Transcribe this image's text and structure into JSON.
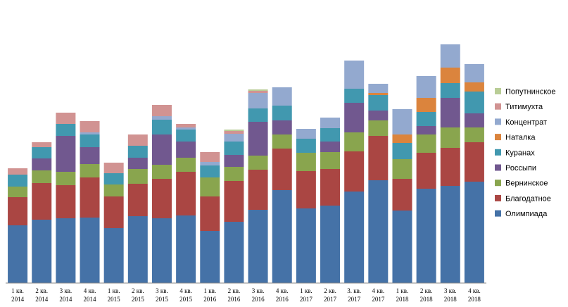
{
  "chart_data": {
    "type": "bar",
    "stacked": true,
    "categories": [
      [
        "1 кв.",
        "2014"
      ],
      [
        "2 кв.",
        "2014"
      ],
      [
        "3 кв.",
        "2014"
      ],
      [
        "4 кв.",
        "2014"
      ],
      [
        "1 кв.",
        "2015"
      ],
      [
        "2 кв.",
        "2015"
      ],
      [
        "3 кв.",
        "2015"
      ],
      [
        "4 кв.",
        "2015"
      ],
      [
        "1 кв.",
        "2016"
      ],
      [
        "2 кв.",
        "2016"
      ],
      [
        "3 кв.",
        "2016"
      ],
      [
        "4 кв.",
        "2016"
      ],
      [
        "1 кв.",
        "2017"
      ],
      [
        "2 кв.",
        "2017"
      ],
      [
        "3. кв.",
        "2017"
      ],
      [
        "4 кв.",
        "2017"
      ],
      [
        "1 кв.",
        "2018"
      ],
      [
        "2 кв.",
        "2018"
      ],
      [
        "3 кв.",
        "2018"
      ],
      [
        "4 кв.",
        "2018"
      ]
    ],
    "series": [
      {
        "name": "Олимпиада",
        "color": "#4572A7",
        "values": [
          82,
          90,
          92,
          93,
          78,
          95,
          92,
          96,
          74,
          87,
          104,
          132,
          106,
          110,
          130,
          146,
          103,
          134,
          138,
          144
        ]
      },
      {
        "name": "Благодатное",
        "color": "#AA4643",
        "values": [
          40,
          52,
          47,
          57,
          45,
          46,
          56,
          62,
          49,
          58,
          57,
          59,
          53,
          52,
          57,
          63,
          45,
          51,
          54,
          56
        ]
      },
      {
        "name": "Вернинское",
        "color": "#89A54E",
        "values": [
          15,
          18,
          19,
          19,
          17,
          21,
          20,
          20,
          27,
          20,
          20,
          20,
          26,
          24,
          27,
          22,
          28,
          26,
          29,
          21
        ]
      },
      {
        "name": "Россыпи",
        "color": "#71588F",
        "values": [
          0,
          17,
          51,
          24,
          0,
          16,
          43,
          23,
          0,
          17,
          48,
          20,
          0,
          15,
          42,
          14,
          0,
          12,
          42,
          20
        ]
      },
      {
        "name": "Куранах",
        "color": "#4198AF",
        "values": [
          17,
          16,
          17,
          18,
          16,
          17,
          21,
          17,
          17,
          19,
          19,
          21,
          20,
          19,
          20,
          22,
          23,
          20,
          21,
          31
        ]
      },
      {
        "name": "Наталка",
        "color": "#DB843D",
        "values": [
          0,
          0,
          0,
          0,
          0,
          0,
          0,
          0,
          0,
          0,
          0,
          0,
          0,
          0,
          0,
          3,
          12,
          20,
          22,
          13
        ]
      },
      {
        "name": "Концентрат",
        "color": "#93A9CF",
        "values": [
          0,
          0,
          0,
          3,
          0,
          0,
          5,
          3,
          5,
          11,
          22,
          26,
          14,
          15,
          40,
          13,
          36,
          31,
          33,
          26
        ]
      },
      {
        "name": "Титимухта",
        "color": "#D19392",
        "values": [
          9,
          7,
          16,
          16,
          15,
          16,
          16,
          5,
          14,
          4,
          3,
          0,
          0,
          0,
          0,
          0,
          0,
          0,
          0,
          0
        ]
      },
      {
        "name": "Попутнинское",
        "color": "#B9CD96",
        "values": [
          0,
          0,
          0,
          0,
          0,
          0,
          0,
          0,
          0,
          2,
          2,
          0,
          0,
          0,
          0,
          0,
          0,
          0,
          0,
          0
        ]
      }
    ],
    "legend_order": [
      "Попутнинское",
      "Титимухта",
      "Концентрат",
      "Наталка",
      "Куранах",
      "Россыпи",
      "Вернинское",
      "Благодатное",
      "Олимпиада"
    ],
    "legend_position": "right",
    "grid": false,
    "ylim": [
      0,
      350
    ]
  }
}
